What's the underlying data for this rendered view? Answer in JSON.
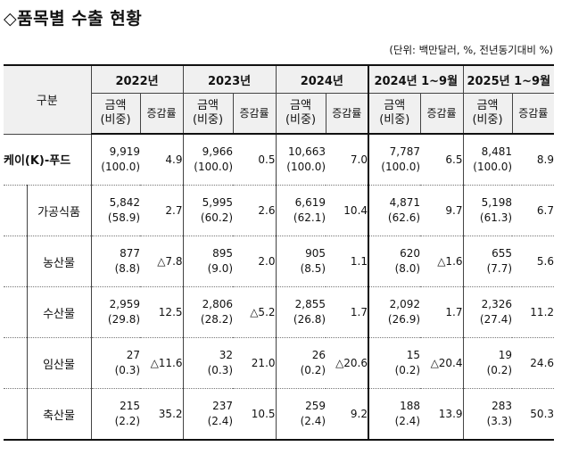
{
  "title": "◇품목별 수출 현황",
  "unit": "(단위: 백만달러, %, 전년동기대비 %)",
  "header": {
    "category": "구분",
    "years": [
      "2022년",
      "2023년",
      "2024년",
      "2024년 1~9월",
      "2025년 1~9월"
    ],
    "amount_label_1": "금액",
    "amount_label_2": "(비중)",
    "change_label": "증감률"
  },
  "rows": [
    {
      "name": "케이(K)-푸드",
      "cells": [
        {
          "amount": "9,919",
          "share": "(100.0)",
          "change": "4.9"
        },
        {
          "amount": "9,966",
          "share": "(100.0)",
          "change": "0.5"
        },
        {
          "amount": "10,663",
          "share": "(100.0)",
          "change": "7.0"
        },
        {
          "amount": "7,787",
          "share": "(100.0)",
          "change": "6.5"
        },
        {
          "amount": "8,481",
          "share": "(100.0)",
          "change": "8.9"
        }
      ]
    },
    {
      "name": "가공식품",
      "cells": [
        {
          "amount": "5,842",
          "share": "(58.9)",
          "change": "2.7"
        },
        {
          "amount": "5,995",
          "share": "(60.2)",
          "change": "2.6"
        },
        {
          "amount": "6,619",
          "share": "(62.1)",
          "change": "10.4"
        },
        {
          "amount": "4,871",
          "share": "(62.6)",
          "change": "9.7"
        },
        {
          "amount": "5,198",
          "share": "(61.3)",
          "change": "6.7"
        }
      ]
    },
    {
      "name": "농산물",
      "cells": [
        {
          "amount": "877",
          "share": "(8.8)",
          "change": "△7.8"
        },
        {
          "amount": "895",
          "share": "(9.0)",
          "change": "2.0"
        },
        {
          "amount": "905",
          "share": "(8.5)",
          "change": "1.1"
        },
        {
          "amount": "620",
          "share": "(8.0)",
          "change": "△1.6"
        },
        {
          "amount": "655",
          "share": "(7.7)",
          "change": "5.6"
        }
      ]
    },
    {
      "name": "수산물",
      "cells": [
        {
          "amount": "2,959",
          "share": "(29.8)",
          "change": "12.5"
        },
        {
          "amount": "2,806",
          "share": "(28.2)",
          "change": "△5.2"
        },
        {
          "amount": "2,855",
          "share": "(26.8)",
          "change": "1.7"
        },
        {
          "amount": "2,092",
          "share": "(26.9)",
          "change": "1.7"
        },
        {
          "amount": "2,326",
          "share": "(27.4)",
          "change": "11.2"
        }
      ]
    },
    {
      "name": "임산물",
      "cells": [
        {
          "amount": "27",
          "share": "(0.3)",
          "change": "△11.6"
        },
        {
          "amount": "32",
          "share": "(0.3)",
          "change": "21.0"
        },
        {
          "amount": "26",
          "share": "(0.2)",
          "change": "△20.6"
        },
        {
          "amount": "15",
          "share": "(0.2)",
          "change": "△20.4"
        },
        {
          "amount": "19",
          "share": "(0.2)",
          "change": "24.6"
        }
      ]
    },
    {
      "name": "축산물",
      "cells": [
        {
          "amount": "215",
          "share": "(2.2)",
          "change": "35.2"
        },
        {
          "amount": "237",
          "share": "(2.4)",
          "change": "10.5"
        },
        {
          "amount": "259",
          "share": "(2.4)",
          "change": "9.2"
        },
        {
          "amount": "188",
          "share": "(2.4)",
          "change": "13.9"
        },
        {
          "amount": "283",
          "share": "(3.3)",
          "change": "50.3"
        }
      ]
    }
  ]
}
